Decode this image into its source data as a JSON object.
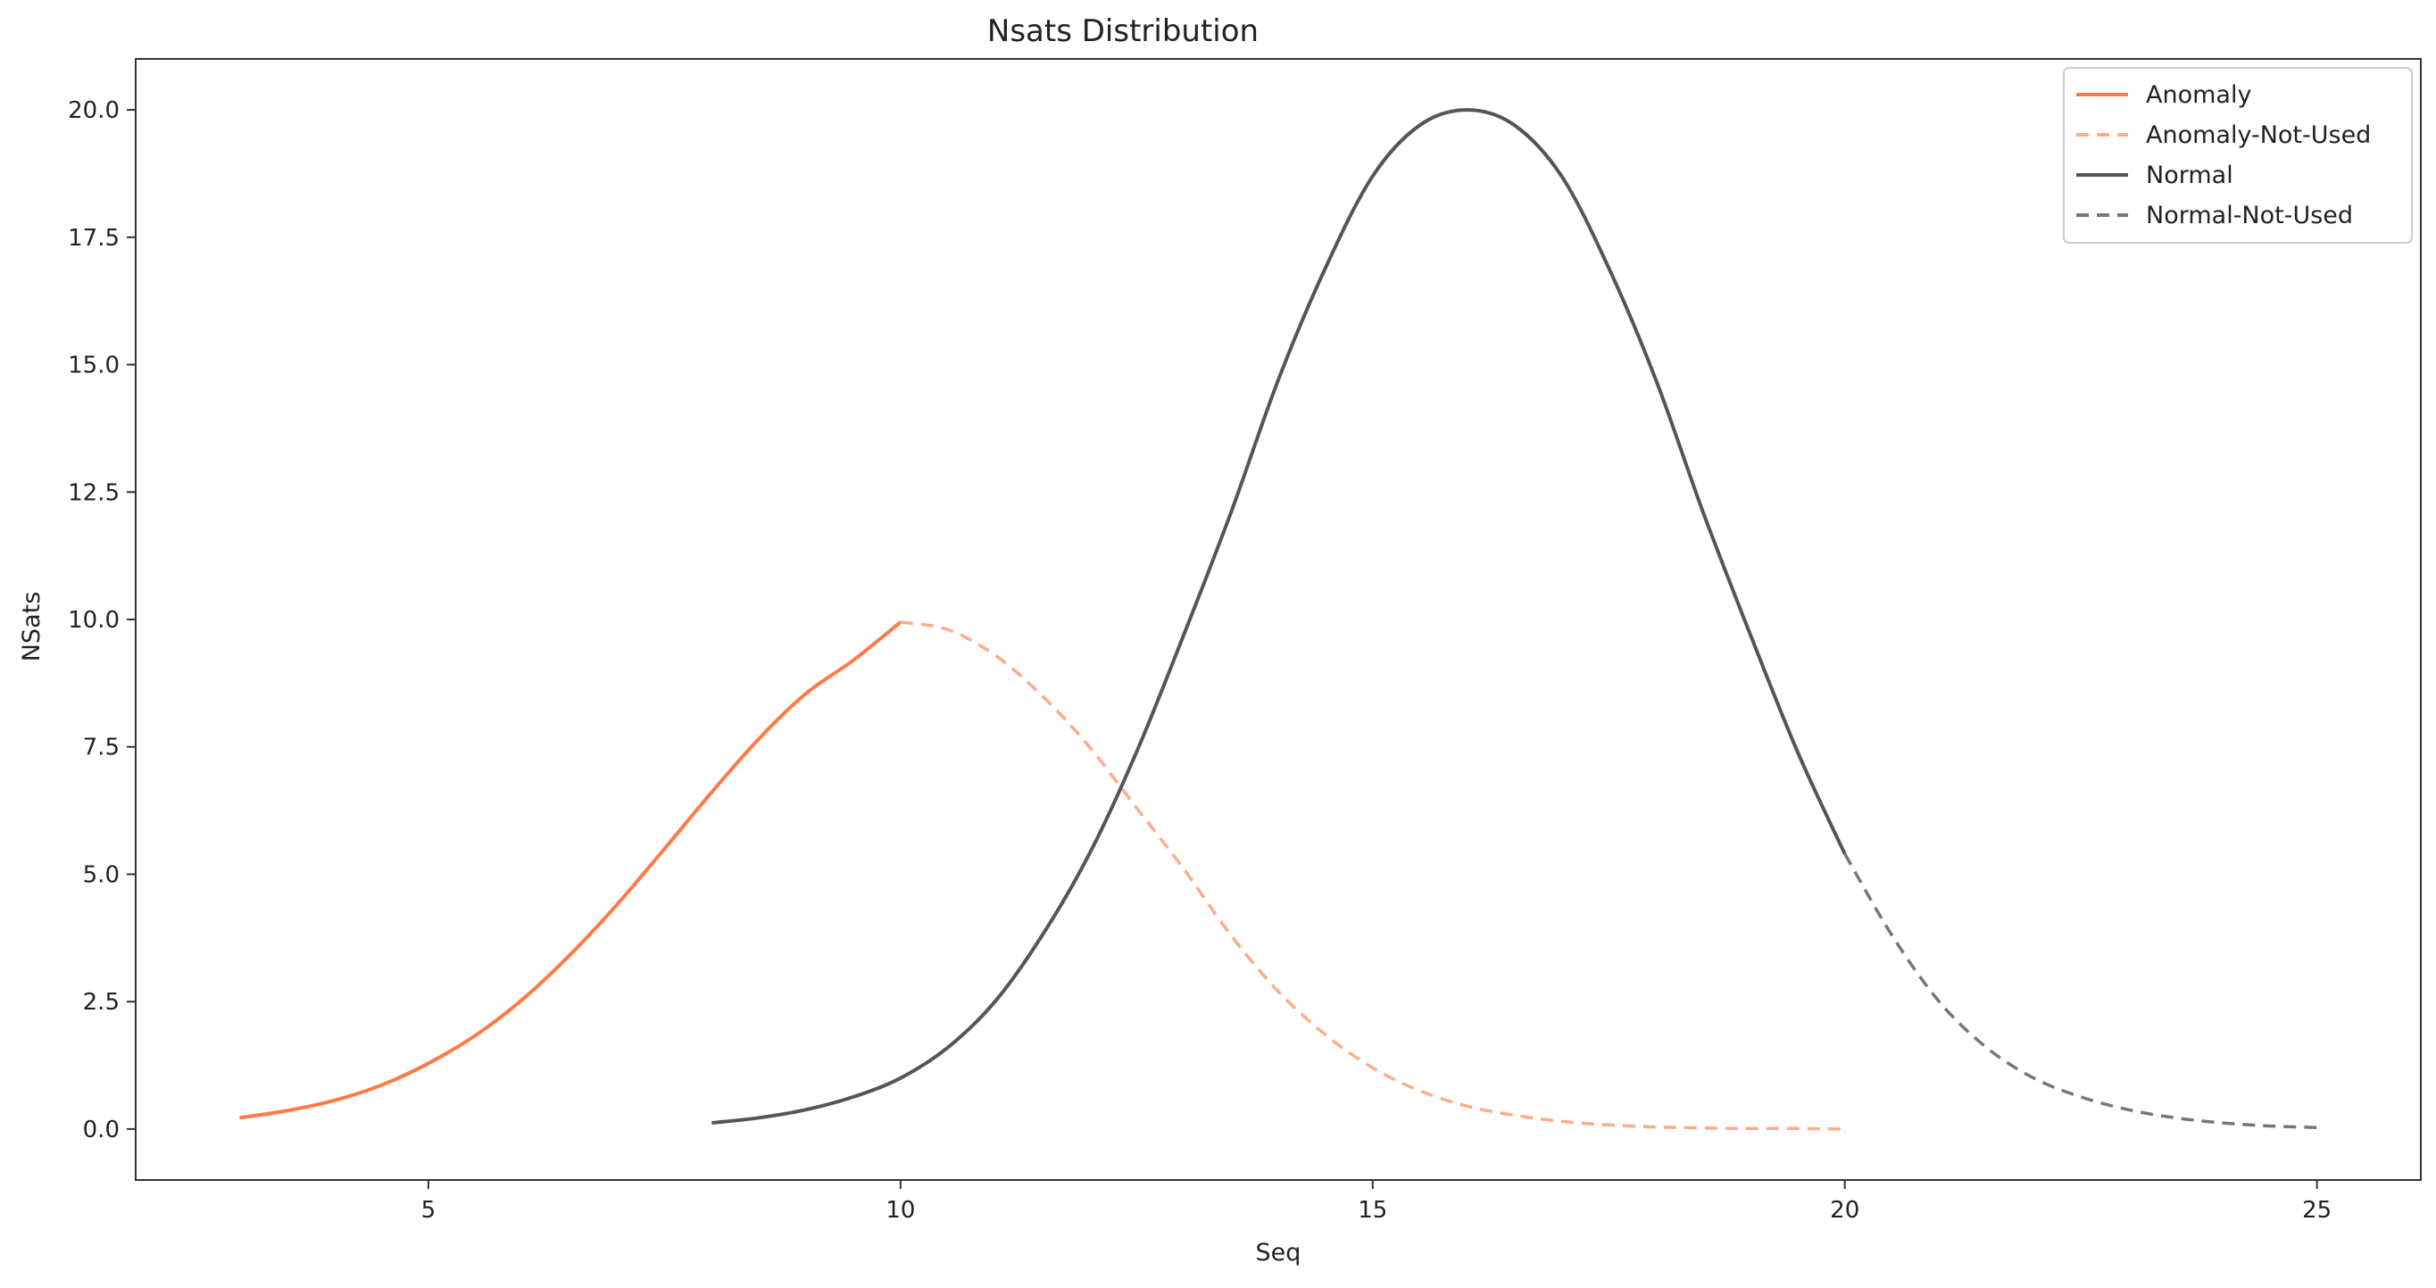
{
  "chart_data": {
    "type": "line",
    "title": "Nsats Distribution",
    "xlabel": "Seq",
    "ylabel": "NSats",
    "xlim": [
      1.9,
      26.1
    ],
    "ylim": [
      -1.0,
      21.0
    ],
    "xticks": [
      5,
      10,
      15,
      20,
      25
    ],
    "yticks": [
      0.0,
      2.5,
      5.0,
      7.5,
      10.0,
      12.5,
      15.0,
      17.5,
      20.0
    ],
    "xtick_labels": [
      "5",
      "10",
      "15",
      "20",
      "25"
    ],
    "ytick_labels": [
      "0.0",
      "2.5",
      "5.0",
      "7.5",
      "10.0",
      "12.5",
      "15.0",
      "17.5",
      "20.0"
    ],
    "grid": false,
    "legend_position": "top-right",
    "series": [
      {
        "name": "Anomaly",
        "color": "#ff7a45",
        "style": "solid",
        "x": [
          3,
          3.5,
          4,
          4.5,
          5,
          5.5,
          6,
          6.5,
          7,
          7.5,
          8,
          8.5,
          9,
          9.5,
          10
        ],
        "y": [
          0.22,
          0.36,
          0.56,
          0.86,
          1.29,
          1.84,
          2.55,
          3.42,
          4.41,
          5.5,
          6.61,
          7.66,
          8.55,
          9.2,
          9.95
        ]
      },
      {
        "name": "Anomaly-Not-Used",
        "color": "#ffab8a",
        "style": "dashed",
        "x": [
          10,
          10.5,
          11,
          11.5,
          12,
          12.5,
          13,
          13.5,
          14,
          14.5,
          15,
          15.5,
          16,
          16.5,
          17,
          17.5,
          18,
          18.5,
          19,
          19.5,
          20
        ],
        "y": [
          9.95,
          9.8,
          9.3,
          8.5,
          7.5,
          6.3,
          5.1,
          3.8,
          2.7,
          1.85,
          1.2,
          0.75,
          0.45,
          0.27,
          0.15,
          0.08,
          0.04,
          0.02,
          0.01,
          0.01,
          0.0
        ]
      },
      {
        "name": "Normal",
        "color": "#555555",
        "style": "solid",
        "x": [
          8,
          8.5,
          9,
          9.5,
          10,
          10.5,
          11,
          11.5,
          12,
          12.5,
          13,
          13.5,
          14,
          14.5,
          15,
          15.5,
          16,
          16.5,
          17,
          17.5,
          18,
          18.5,
          19,
          19.5,
          20
        ],
        "y": [
          0.12,
          0.22,
          0.38,
          0.63,
          1.0,
          1.6,
          2.5,
          3.8,
          5.4,
          7.4,
          9.7,
          12.1,
          14.7,
          16.9,
          18.7,
          19.7,
          20.0,
          19.7,
          18.7,
          16.9,
          14.7,
          12.1,
          9.7,
          7.4,
          5.4
        ]
      },
      {
        "name": "Normal-Not-Used",
        "color": "#777777",
        "style": "dashed",
        "x": [
          20,
          20.5,
          21,
          21.5,
          22,
          22.5,
          23,
          23.5,
          24,
          24.5,
          25
        ],
        "y": [
          5.4,
          3.8,
          2.5,
          1.6,
          1.0,
          0.63,
          0.38,
          0.22,
          0.12,
          0.06,
          0.03
        ]
      }
    ]
  }
}
